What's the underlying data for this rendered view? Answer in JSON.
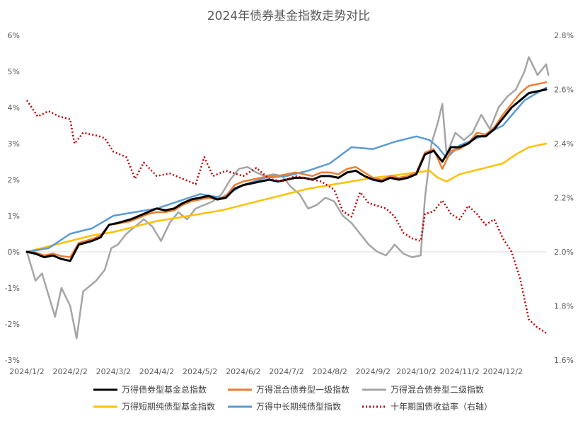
{
  "chart_data": {
    "type": "line",
    "title": "2024年债券基金指数走势对比",
    "x_ticks": [
      "2024/1/2",
      "2024/2/2",
      "2024/3/2",
      "2024/4/2",
      "2024/5/2",
      "2024/6/2",
      "2024/7/2",
      "2024/8/2",
      "2024/9/2",
      "2024/10/2",
      "2024/11/2",
      "2024/12/2"
    ],
    "x_domain": [
      0,
      12
    ],
    "y_left": {
      "ticks": [
        "-3%",
        "-2%",
        "-1%",
        "0%",
        "1%",
        "2%",
        "3%",
        "4%",
        "5%",
        "6%"
      ],
      "range": [
        -3,
        6
      ],
      "unit": "%"
    },
    "y_right": {
      "ticks": [
        "1.6%",
        "1.8%",
        "2.0%",
        "2.2%",
        "2.4%",
        "2.6%",
        "2.8%"
      ],
      "range": [
        1.6,
        2.8
      ],
      "unit": "%"
    },
    "legend_position": "bottom",
    "series": [
      {
        "name": "万得债券型基金总指数",
        "axis": "left",
        "color": "#000000",
        "style": "solid",
        "width": 3,
        "points": [
          [
            0,
            0
          ],
          [
            0.2,
            -0.05
          ],
          [
            0.4,
            -0.15
          ],
          [
            0.6,
            -0.1
          ],
          [
            0.8,
            -0.2
          ],
          [
            1.0,
            -0.25
          ],
          [
            1.2,
            0.2
          ],
          [
            1.5,
            0.3
          ],
          [
            1.7,
            0.4
          ],
          [
            1.9,
            0.75
          ],
          [
            2.1,
            0.8
          ],
          [
            2.4,
            0.9
          ],
          [
            2.6,
            1.0
          ],
          [
            2.8,
            1.1
          ],
          [
            3.0,
            1.2
          ],
          [
            3.2,
            1.15
          ],
          [
            3.4,
            1.2
          ],
          [
            3.6,
            1.35
          ],
          [
            3.8,
            1.45
          ],
          [
            4.0,
            1.5
          ],
          [
            4.2,
            1.55
          ],
          [
            4.4,
            1.45
          ],
          [
            4.6,
            1.5
          ],
          [
            4.8,
            1.75
          ],
          [
            5.0,
            1.85
          ],
          [
            5.2,
            1.9
          ],
          [
            5.4,
            1.95
          ],
          [
            5.6,
            2.0
          ],
          [
            5.8,
            1.95
          ],
          [
            6.0,
            2.0
          ],
          [
            6.2,
            2.05
          ],
          [
            6.4,
            2.05
          ],
          [
            6.6,
            2.0
          ],
          [
            6.8,
            2.1
          ],
          [
            7.0,
            2.1
          ],
          [
            7.2,
            2.05
          ],
          [
            7.4,
            2.2
          ],
          [
            7.6,
            2.25
          ],
          [
            7.8,
            2.1
          ],
          [
            8.0,
            2.0
          ],
          [
            8.2,
            1.95
          ],
          [
            8.4,
            2.05
          ],
          [
            8.6,
            2.0
          ],
          [
            8.8,
            2.05
          ],
          [
            9.0,
            2.15
          ],
          [
            9.2,
            2.7
          ],
          [
            9.4,
            2.8
          ],
          [
            9.6,
            2.5
          ],
          [
            9.8,
            2.9
          ],
          [
            10.0,
            2.9
          ],
          [
            10.2,
            3.0
          ],
          [
            10.4,
            3.2
          ],
          [
            10.6,
            3.2
          ],
          [
            10.8,
            3.4
          ],
          [
            11.0,
            3.7
          ],
          [
            11.2,
            4.0
          ],
          [
            11.4,
            4.2
          ],
          [
            11.6,
            4.4
          ],
          [
            11.8,
            4.45
          ],
          [
            12.0,
            4.5
          ]
        ]
      },
      {
        "name": "万得混合债券型一级指数",
        "axis": "left",
        "color": "#ED7D31",
        "style": "solid",
        "width": 2.5,
        "points": [
          [
            0,
            0
          ],
          [
            0.2,
            -0.02
          ],
          [
            0.4,
            -0.1
          ],
          [
            0.6,
            -0.05
          ],
          [
            0.8,
            -0.12
          ],
          [
            1.0,
            -0.15
          ],
          [
            1.2,
            0.25
          ],
          [
            1.5,
            0.35
          ],
          [
            1.7,
            0.45
          ],
          [
            1.9,
            0.75
          ],
          [
            2.1,
            0.78
          ],
          [
            2.4,
            0.85
          ],
          [
            2.6,
            0.95
          ],
          [
            2.8,
            1.05
          ],
          [
            3.0,
            1.1
          ],
          [
            3.2,
            1.1
          ],
          [
            3.4,
            1.15
          ],
          [
            3.6,
            1.3
          ],
          [
            3.8,
            1.4
          ],
          [
            4.0,
            1.45
          ],
          [
            4.2,
            1.5
          ],
          [
            4.4,
            1.45
          ],
          [
            4.6,
            1.55
          ],
          [
            4.8,
            1.85
          ],
          [
            5.0,
            1.95
          ],
          [
            5.2,
            2.0
          ],
          [
            5.4,
            2.05
          ],
          [
            5.6,
            2.1
          ],
          [
            5.8,
            2.1
          ],
          [
            6.0,
            2.15
          ],
          [
            6.2,
            2.2
          ],
          [
            6.4,
            2.15
          ],
          [
            6.6,
            2.1
          ],
          [
            6.8,
            2.2
          ],
          [
            7.0,
            2.2
          ],
          [
            7.2,
            2.15
          ],
          [
            7.4,
            2.3
          ],
          [
            7.6,
            2.35
          ],
          [
            7.8,
            2.2
          ],
          [
            8.0,
            2.05
          ],
          [
            8.2,
            2.0
          ],
          [
            8.4,
            2.1
          ],
          [
            8.6,
            2.05
          ],
          [
            8.8,
            2.1
          ],
          [
            9.0,
            2.2
          ],
          [
            9.2,
            2.75
          ],
          [
            9.4,
            2.85
          ],
          [
            9.6,
            2.3
          ],
          [
            9.8,
            2.8
          ],
          [
            10.0,
            2.85
          ],
          [
            10.2,
            3.0
          ],
          [
            10.4,
            3.3
          ],
          [
            10.6,
            3.25
          ],
          [
            10.8,
            3.45
          ],
          [
            11.0,
            3.8
          ],
          [
            11.2,
            4.1
          ],
          [
            11.4,
            4.4
          ],
          [
            11.6,
            4.6
          ],
          [
            11.8,
            4.65
          ],
          [
            12.0,
            4.7
          ]
        ]
      },
      {
        "name": "万得混合债券型二级指数",
        "axis": "left",
        "color": "#A5A5A5",
        "style": "solid",
        "width": 2.5,
        "points": [
          [
            0,
            0
          ],
          [
            0.2,
            -0.8
          ],
          [
            0.35,
            -0.6
          ],
          [
            0.5,
            -1.2
          ],
          [
            0.65,
            -1.8
          ],
          [
            0.8,
            -1.0
          ],
          [
            1.0,
            -1.5
          ],
          [
            1.15,
            -2.4
          ],
          [
            1.3,
            -1.1
          ],
          [
            1.6,
            -0.8
          ],
          [
            1.8,
            -0.5
          ],
          [
            1.95,
            0.1
          ],
          [
            2.1,
            0.2
          ],
          [
            2.3,
            0.5
          ],
          [
            2.5,
            0.7
          ],
          [
            2.7,
            0.9
          ],
          [
            2.9,
            0.7
          ],
          [
            3.1,
            0.3
          ],
          [
            3.3,
            0.8
          ],
          [
            3.5,
            1.1
          ],
          [
            3.7,
            0.9
          ],
          [
            3.9,
            1.2
          ],
          [
            4.1,
            1.3
          ],
          [
            4.3,
            1.4
          ],
          [
            4.5,
            1.6
          ],
          [
            4.7,
            2.0
          ],
          [
            4.9,
            2.3
          ],
          [
            5.1,
            2.35
          ],
          [
            5.3,
            2.2
          ],
          [
            5.5,
            2.1
          ],
          [
            5.7,
            2.15
          ],
          [
            5.9,
            2.1
          ],
          [
            6.1,
            1.8
          ],
          [
            6.3,
            1.6
          ],
          [
            6.5,
            1.2
          ],
          [
            6.7,
            1.3
          ],
          [
            6.9,
            1.5
          ],
          [
            7.1,
            1.4
          ],
          [
            7.3,
            1.0
          ],
          [
            7.5,
            0.8
          ],
          [
            7.7,
            0.5
          ],
          [
            7.9,
            0.2
          ],
          [
            8.1,
            0.0
          ],
          [
            8.3,
            -0.1
          ],
          [
            8.5,
            0.2
          ],
          [
            8.7,
            -0.05
          ],
          [
            8.9,
            -0.15
          ],
          [
            9.1,
            -0.1
          ],
          [
            9.2,
            1.5
          ],
          [
            9.35,
            3.0
          ],
          [
            9.5,
            3.6
          ],
          [
            9.6,
            4.1
          ],
          [
            9.7,
            2.7
          ],
          [
            9.9,
            3.3
          ],
          [
            10.1,
            3.1
          ],
          [
            10.3,
            3.3
          ],
          [
            10.5,
            3.8
          ],
          [
            10.7,
            3.4
          ],
          [
            10.9,
            4.0
          ],
          [
            11.1,
            4.3
          ],
          [
            11.3,
            4.5
          ],
          [
            11.5,
            5.0
          ],
          [
            11.6,
            5.4
          ],
          [
            11.8,
            4.9
          ],
          [
            12.0,
            5.2
          ],
          [
            12.05,
            4.9
          ]
        ]
      },
      {
        "name": "万得短期纯债型基金指数",
        "axis": "left",
        "color": "#FFC000",
        "style": "solid",
        "width": 2.5,
        "points": [
          [
            0,
            0
          ],
          [
            0.5,
            0.15
          ],
          [
            1.0,
            0.3
          ],
          [
            1.5,
            0.45
          ],
          [
            2.0,
            0.55
          ],
          [
            2.5,
            0.7
          ],
          [
            3.0,
            0.85
          ],
          [
            3.5,
            0.95
          ],
          [
            4.0,
            1.05
          ],
          [
            4.5,
            1.15
          ],
          [
            5.0,
            1.3
          ],
          [
            5.5,
            1.45
          ],
          [
            6.0,
            1.6
          ],
          [
            6.5,
            1.75
          ],
          [
            7.0,
            1.85
          ],
          [
            7.5,
            1.95
          ],
          [
            8.0,
            2.05
          ],
          [
            8.5,
            2.12
          ],
          [
            9.0,
            2.2
          ],
          [
            9.3,
            2.25
          ],
          [
            9.5,
            2.05
          ],
          [
            9.7,
            1.95
          ],
          [
            10.0,
            2.15
          ],
          [
            10.5,
            2.3
          ],
          [
            11.0,
            2.45
          ],
          [
            11.3,
            2.7
          ],
          [
            11.6,
            2.9
          ],
          [
            12.0,
            3.0
          ]
        ]
      },
      {
        "name": "万得中长期纯债型指数",
        "axis": "left",
        "color": "#5B9BD5",
        "style": "solid",
        "width": 2.5,
        "points": [
          [
            0,
            0
          ],
          [
            0.5,
            0.1
          ],
          [
            1.0,
            0.5
          ],
          [
            1.5,
            0.65
          ],
          [
            2.0,
            1.0
          ],
          [
            2.5,
            1.1
          ],
          [
            3.0,
            1.2
          ],
          [
            3.5,
            1.4
          ],
          [
            4.0,
            1.6
          ],
          [
            4.5,
            1.5
          ],
          [
            5.0,
            1.85
          ],
          [
            5.5,
            2.05
          ],
          [
            6.0,
            2.1
          ],
          [
            6.5,
            2.25
          ],
          [
            7.0,
            2.45
          ],
          [
            7.5,
            2.9
          ],
          [
            8.0,
            2.85
          ],
          [
            8.5,
            3.05
          ],
          [
            9.0,
            3.2
          ],
          [
            9.3,
            3.1
          ],
          [
            9.5,
            2.9
          ],
          [
            9.7,
            2.6
          ],
          [
            10.0,
            2.95
          ],
          [
            10.5,
            3.2
          ],
          [
            11.0,
            3.5
          ],
          [
            11.5,
            4.2
          ],
          [
            12.0,
            4.55
          ]
        ]
      },
      {
        "name": "十年期国债收益率（右轴）",
        "axis": "right",
        "color": "#C00000",
        "style": "dotted",
        "width": 2.5,
        "points": [
          [
            0,
            2.56
          ],
          [
            0.25,
            2.5
          ],
          [
            0.5,
            2.52
          ],
          [
            0.75,
            2.5
          ],
          [
            1.0,
            2.49
          ],
          [
            1.1,
            2.4
          ],
          [
            1.3,
            2.44
          ],
          [
            1.6,
            2.43
          ],
          [
            1.8,
            2.42
          ],
          [
            2.0,
            2.37
          ],
          [
            2.3,
            2.35
          ],
          [
            2.5,
            2.27
          ],
          [
            2.7,
            2.33
          ],
          [
            3.0,
            2.28
          ],
          [
            3.3,
            2.29
          ],
          [
            3.6,
            2.27
          ],
          [
            3.9,
            2.25
          ],
          [
            4.1,
            2.35
          ],
          [
            4.3,
            2.28
          ],
          [
            4.6,
            2.3
          ],
          [
            5.0,
            2.28
          ],
          [
            5.3,
            2.31
          ],
          [
            5.6,
            2.27
          ],
          [
            5.9,
            2.26
          ],
          [
            6.2,
            2.28
          ],
          [
            6.5,
            2.27
          ],
          [
            6.8,
            2.26
          ],
          [
            7.1,
            2.23
          ],
          [
            7.3,
            2.15
          ],
          [
            7.5,
            2.13
          ],
          [
            7.7,
            2.22
          ],
          [
            7.9,
            2.18
          ],
          [
            8.1,
            2.17
          ],
          [
            8.3,
            2.16
          ],
          [
            8.5,
            2.13
          ],
          [
            8.7,
            2.07
          ],
          [
            8.9,
            2.05
          ],
          [
            9.1,
            2.04
          ],
          [
            9.2,
            2.14
          ],
          [
            9.4,
            2.15
          ],
          [
            9.6,
            2.19
          ],
          [
            9.8,
            2.14
          ],
          [
            10.0,
            2.12
          ],
          [
            10.2,
            2.17
          ],
          [
            10.4,
            2.14
          ],
          [
            10.6,
            2.1
          ],
          [
            10.8,
            2.12
          ],
          [
            11.0,
            2.05
          ],
          [
            11.2,
            2.0
          ],
          [
            11.4,
            1.9
          ],
          [
            11.6,
            1.75
          ],
          [
            11.8,
            1.72
          ],
          [
            12.0,
            1.7
          ]
        ]
      }
    ]
  }
}
